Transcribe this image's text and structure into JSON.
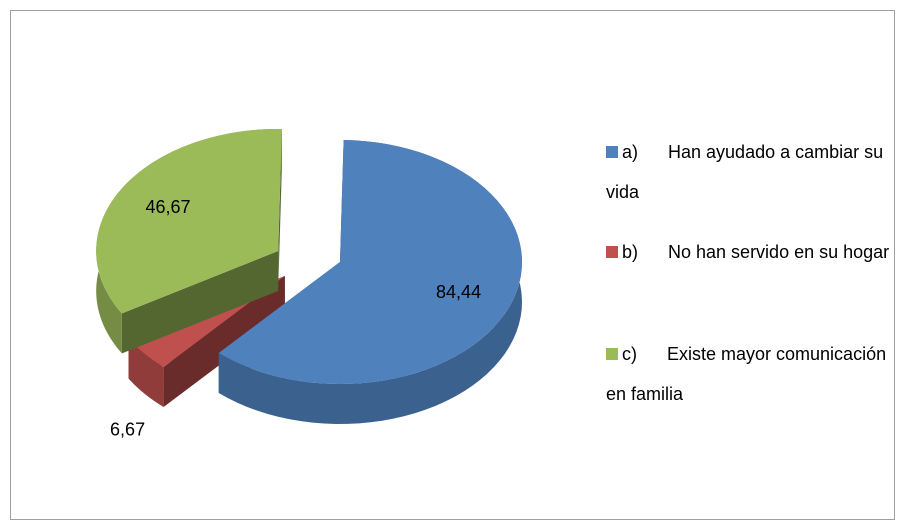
{
  "chart_data": {
    "type": "pie",
    "categories": [
      "a)      Han ayudado a cambiar su vida",
      "b)      No han servido en su hogar",
      "c)      Existe mayor comunicación en familia"
    ],
    "values": [
      84.44,
      6.67,
      46.67
    ],
    "value_labels": [
      "84,44",
      "6,67",
      "46,67"
    ],
    "colors": [
      "#4f81bd",
      "#c0504d",
      "#9bbb59"
    ],
    "legend": "right"
  }
}
